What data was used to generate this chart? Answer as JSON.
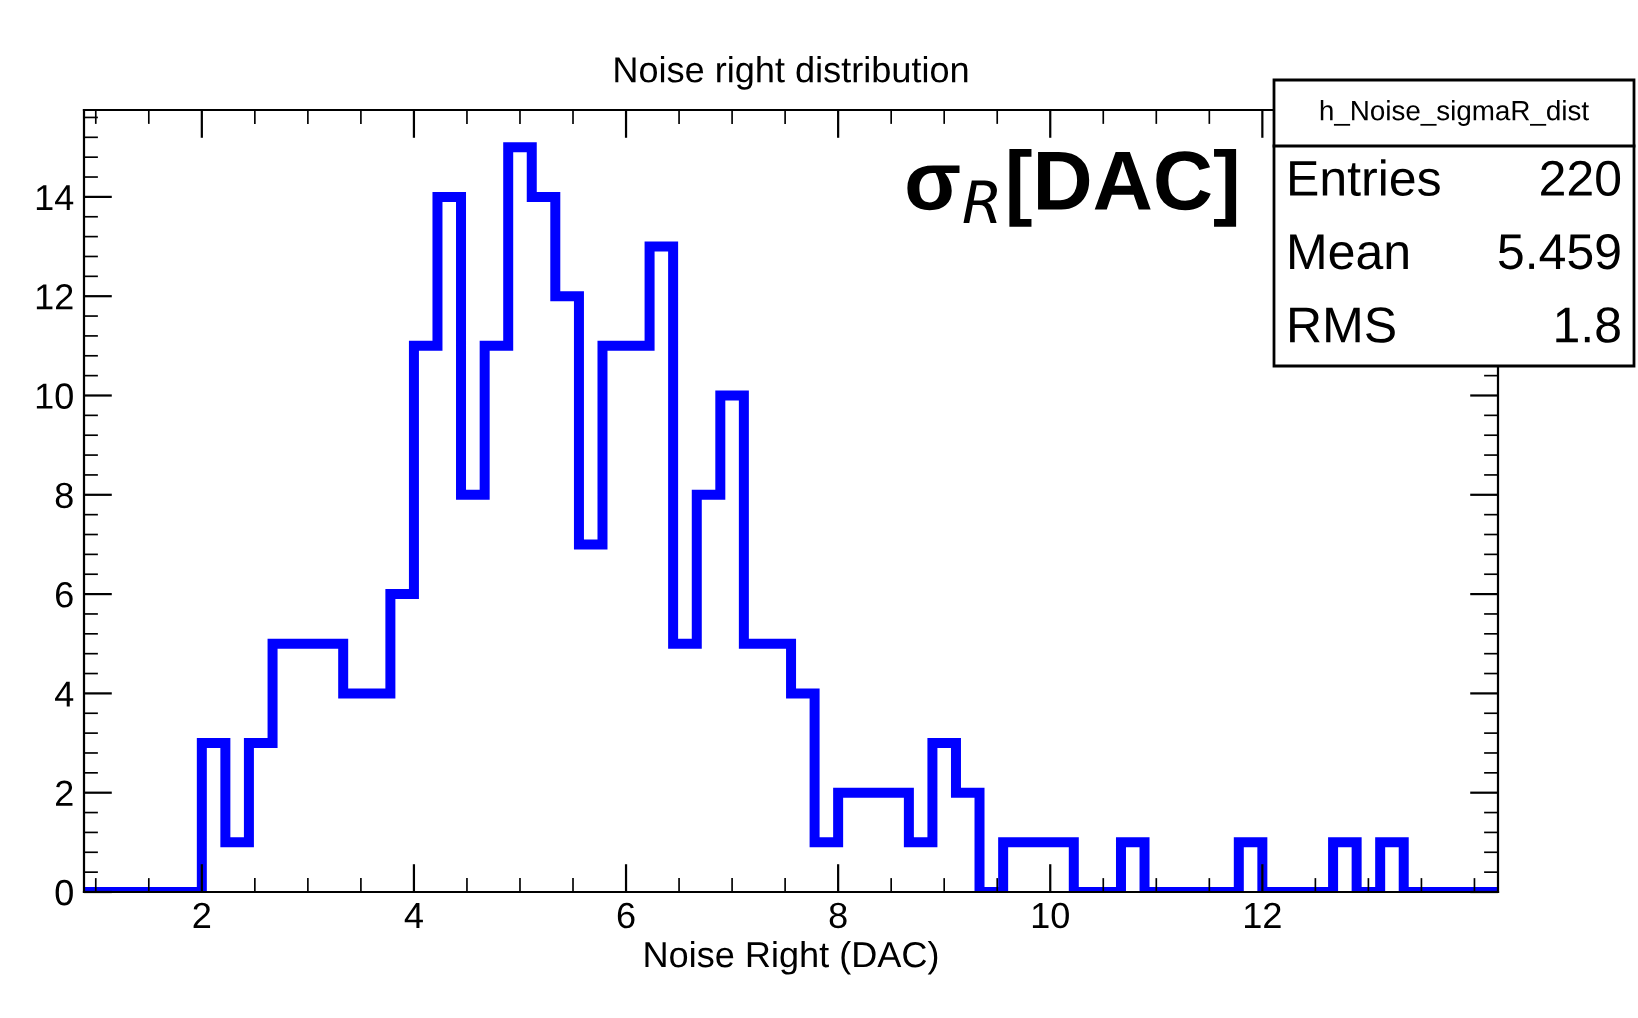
{
  "chart_data": {
    "type": "histogram",
    "title": "Noise right distribution",
    "xlabel": "Noise Right (DAC)",
    "bins": [
      0.889,
      1.111,
      1.333,
      1.556,
      1.778,
      2.0,
      2.222,
      2.444,
      2.667,
      2.889,
      3.111,
      3.333,
      3.556,
      3.778,
      4.0,
      4.222,
      4.444,
      4.667,
      4.889,
      5.111,
      5.333,
      5.556,
      5.778,
      6.0,
      6.222,
      6.444,
      6.667,
      6.889,
      7.111,
      7.333,
      7.556,
      7.778,
      8.0,
      8.222,
      8.444,
      8.667,
      8.889,
      9.111,
      9.333,
      9.556,
      9.778,
      10.0,
      10.222,
      10.444,
      10.667,
      10.889,
      11.111,
      11.333,
      11.556,
      11.778,
      12.0,
      12.222,
      12.444,
      12.667,
      12.889,
      13.111,
      13.333,
      13.556,
      13.778,
      14.0,
      14.222
    ],
    "values": [
      0,
      0,
      0,
      0,
      0,
      3,
      1,
      3,
      5,
      5,
      5,
      4,
      4,
      6,
      11,
      14,
      8,
      11,
      15,
      14,
      12,
      7,
      11,
      11,
      13,
      5,
      8,
      10,
      5,
      5,
      4,
      1,
      2,
      2,
      2,
      1,
      3,
      2,
      0,
      1,
      1,
      1,
      0,
      0,
      1,
      0,
      0,
      0,
      0,
      1,
      0,
      0,
      0,
      1,
      0,
      1,
      0,
      0,
      0,
      0
    ],
    "color": "#0000ff",
    "xlim": [
      0.889,
      14.222
    ],
    "ylim": [
      0,
      15.75
    ],
    "xticks": [
      2,
      4,
      6,
      8,
      10,
      12
    ],
    "yticks": [
      0,
      2,
      4,
      6,
      8,
      10,
      12,
      14
    ],
    "grid": false,
    "annotations": [
      "σ$_{R}$[DAC]",
      "h_Noise_sigmaR_dist",
      "Entries",
      "220",
      "Mean",
      "5.459",
      "RMS",
      "1.8"
    ]
  }
}
